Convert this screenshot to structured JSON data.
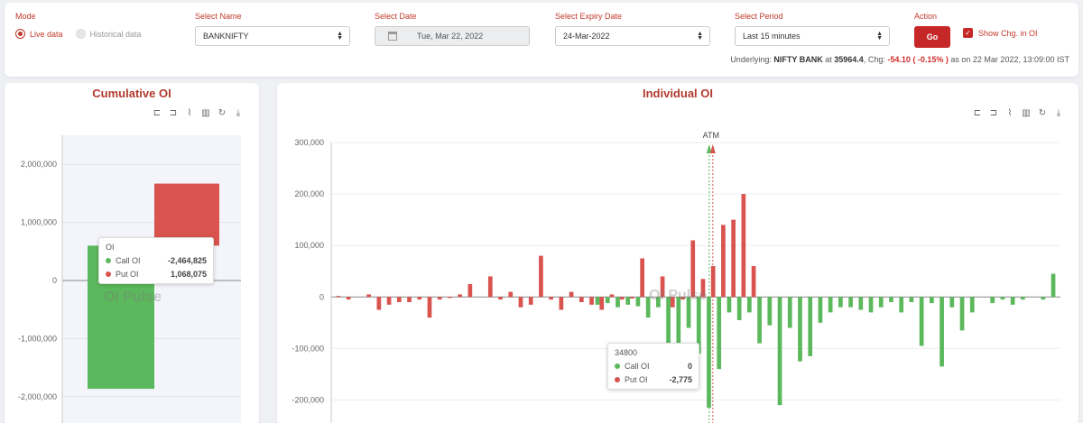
{
  "mode": {
    "label": "Mode",
    "live": "Live data",
    "historical": "Historical data"
  },
  "select_name": {
    "label": "Select Name",
    "value": "BANKNIFTY"
  },
  "select_date": {
    "label": "Select Date",
    "value": "Tue, Mar 22, 2022"
  },
  "expiry": {
    "label": "Select Expiry Date",
    "value": "24-Mar-2022"
  },
  "period": {
    "label": "Select Period",
    "value": "Last 15 minutes"
  },
  "action": {
    "label": "Action",
    "go": "Go",
    "show_chg": "Show Chg. in OI",
    "show_chg_checked": true
  },
  "underlying": {
    "prefix": "Underlying:",
    "name": "NIFTY BANK",
    "at": "at",
    "price": "35964.4",
    "chg_label": "Chg:",
    "chg": "-54.10 ( -0.15% )",
    "asof": "as on 22 Mar 2022, 13:09:00 IST"
  },
  "colors": {
    "call": "#5cb85c",
    "put": "#d9534f",
    "accent": "#c62828"
  },
  "toolbox_icons": [
    "zoom-icon",
    "zoom-reset-icon",
    "line-chart-icon",
    "bar-chart-icon",
    "refresh-icon",
    "download-icon"
  ],
  "cumulative": {
    "title": "Cumulative OI",
    "watermark": "OI Pulse",
    "tooltip": {
      "title": "OI",
      "call_label": "Call OI",
      "call_value": "-2,464,825",
      "put_label": "Put OI",
      "put_value": "1,068,075"
    }
  },
  "individual": {
    "title": "Individual OI",
    "watermark": "OI Pulse",
    "atm_label": "ATM",
    "tooltip": {
      "title": "34800",
      "call_label": "Call OI",
      "call_value": "0",
      "put_label": "Put OI",
      "put_value": "-2,775"
    }
  },
  "chart_data": [
    {
      "type": "bar",
      "title": "Cumulative OI",
      "ylim": [
        -2500000,
        2500000
      ],
      "yticks": [
        2000000,
        1000000,
        0,
        -1000000,
        -2000000
      ],
      "ytick_labels": [
        "2,000,000",
        "1,000,000",
        "0",
        "-1,000,000",
        "-2,000,000"
      ],
      "categories": [
        "OI"
      ],
      "series": [
        {
          "name": "Call OI",
          "base": 600000,
          "values": [
            -2464825
          ]
        },
        {
          "name": "Put OI",
          "base": 600000,
          "values": [
            1068075
          ]
        }
      ],
      "grid": true
    },
    {
      "type": "bar",
      "title": "Individual OI",
      "ylim": [
        -250000,
        300000
      ],
      "yticks": [
        300000,
        200000,
        100000,
        0,
        -100000,
        -200000
      ],
      "ytick_labels": [
        "300,000",
        "200,000",
        "100,000",
        "0",
        "-100,000",
        "-200,000"
      ],
      "strike_count": 72,
      "atm_index": 37,
      "series": [
        {
          "name": "Call OI",
          "values": [
            0,
            0,
            0,
            0,
            0,
            0,
            0,
            0,
            0,
            0,
            0,
            0,
            0,
            0,
            0,
            0,
            0,
            0,
            0,
            0,
            0,
            0,
            0,
            0,
            0,
            0,
            -15000,
            -12000,
            -20000,
            -15000,
            -18000,
            -40000,
            -20000,
            -110000,
            -110000,
            -60000,
            -110000,
            -215000,
            -140000,
            -30000,
            -45000,
            -30000,
            -90000,
            -55000,
            -210000,
            -60000,
            -125000,
            -115000,
            -50000,
            -30000,
            -20000,
            -20000,
            -25000,
            -30000,
            -20000,
            -10000,
            -30000,
            -10000,
            -95000,
            -12000,
            -135000,
            -20000,
            -65000,
            -30000,
            0,
            -12000,
            -5000,
            -15000,
            -5000,
            0,
            -5000,
            45000
          ]
        },
        {
          "name": "Put OI",
          "values": [
            2000,
            -5000,
            0,
            5000,
            -25000,
            -15000,
            -10000,
            -10000,
            -5000,
            -40000,
            -5000,
            -2000,
            5000,
            25000,
            0,
            40000,
            -5000,
            10000,
            -20000,
            -15000,
            80000,
            -5000,
            -25000,
            10000,
            -10000,
            -15000,
            -25000,
            5000,
            -5000,
            -3000,
            75000,
            0,
            40000,
            -20000,
            -5000,
            110000,
            35000,
            60000,
            140000,
            150000,
            200000,
            60000,
            0,
            0,
            0,
            0,
            0,
            0,
            0,
            0,
            0,
            0,
            0,
            0,
            0,
            0,
            0,
            0,
            0,
            0,
            0,
            0,
            0,
            0,
            0,
            0,
            0,
            0,
            0,
            0,
            0,
            0
          ]
        }
      ],
      "grid": true
    }
  ]
}
